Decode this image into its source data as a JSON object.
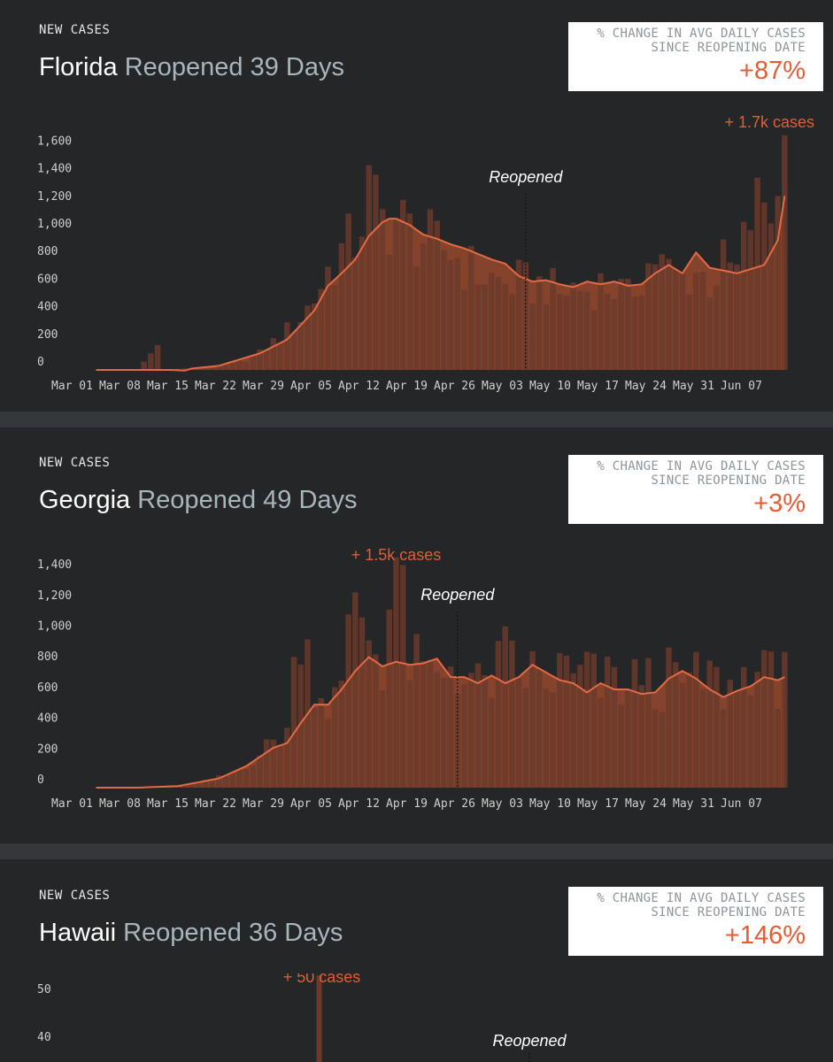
{
  "colors": {
    "background": "#252628",
    "separator": "#34373b",
    "bar": "#6b3a2b",
    "area": "#8a442c",
    "line": "#e36a44",
    "accent": "#e25d34",
    "muted": "#a7b5bd"
  },
  "panels": [
    {
      "eyebrow": "NEW CASES",
      "state": "Florida",
      "reopened": "Reopened 39 Days",
      "stat_line1": "% CHANGE IN AVG DAILY CASES",
      "stat_line2": "SINCE REOPENING DATE",
      "stat_value": "+87%",
      "peak_label": "+ 1.7k cases",
      "reopen_label": "Reopened"
    },
    {
      "eyebrow": "NEW CASES",
      "state": "Georgia",
      "reopened": "Reopened 49 Days",
      "stat_line1": "% CHANGE IN AVG DAILY CASES",
      "stat_line2": "SINCE REOPENING DATE",
      "stat_value": "+3%",
      "peak_label": "+ 1.5k cases",
      "reopen_label": "Reopened"
    },
    {
      "eyebrow": "NEW CASES",
      "state": "Hawaii",
      "reopened": "Reopened 36 Days",
      "stat_line1": "% CHANGE IN AVG DAILY CASES",
      "stat_line2": "SINCE REOPENING DATE",
      "stat_value": "+146%",
      "peak_label": "+ 50 cases",
      "reopen_label": "Reopened"
    }
  ],
  "chart_data": [
    {
      "type": "bar",
      "title": "Florida Reopened 39 Days",
      "series_names": [
        "Daily new cases",
        "7-day average"
      ],
      "x_start": "2020-03-01",
      "xticks": [
        "Mar 01",
        "Mar 08",
        "Mar 15",
        "Mar 22",
        "Mar 29",
        "Apr 05",
        "Apr 12",
        "Apr 19",
        "Apr 26",
        "May 03",
        "May 10",
        "May 17",
        "May 24",
        "May 31",
        "Jun 07"
      ],
      "yticks": [
        "0",
        "200",
        "400",
        "600",
        "800",
        "1,000",
        "1,200",
        "1,400",
        "1,600"
      ],
      "ylim": [
        0,
        1650
      ],
      "reopen_day": 63,
      "peak_day": 101,
      "anchors": [
        [
          0,
          0
        ],
        [
          4,
          0
        ],
        [
          5,
          5
        ],
        [
          6,
          0
        ],
        [
          9,
          180
        ],
        [
          10,
          0
        ],
        [
          13,
          12
        ],
        [
          16,
          8
        ],
        [
          20,
          40
        ],
        [
          24,
          120
        ],
        [
          28,
          280
        ],
        [
          30,
          380
        ],
        [
          32,
          520
        ],
        [
          34,
          720
        ],
        [
          36,
          850
        ],
        [
          38,
          950
        ],
        [
          40,
          1280
        ],
        [
          42,
          1080
        ],
        [
          44,
          1100
        ],
        [
          46,
          1000
        ],
        [
          48,
          950
        ],
        [
          50,
          880
        ],
        [
          52,
          870
        ],
        [
          54,
          760
        ],
        [
          56,
          700
        ],
        [
          58,
          660
        ],
        [
          60,
          620
        ],
        [
          62,
          640
        ],
        [
          64,
          600
        ],
        [
          66,
          620
        ],
        [
          68,
          540
        ],
        [
          70,
          600
        ],
        [
          72,
          580
        ],
        [
          74,
          620
        ],
        [
          76,
          600
        ],
        [
          78,
          520
        ],
        [
          80,
          700
        ],
        [
          82,
          820
        ],
        [
          84,
          700
        ],
        [
          86,
          660
        ],
        [
          88,
          720
        ],
        [
          90,
          640
        ],
        [
          92,
          760
        ],
        [
          94,
          700
        ],
        [
          96,
          1100
        ],
        [
          98,
          1240
        ],
        [
          100,
          1200
        ],
        [
          101,
          1700
        ]
      ],
      "avg_anchors": [
        [
          0,
          0
        ],
        [
          11,
          0
        ],
        [
          13,
          -5
        ],
        [
          14,
          10
        ],
        [
          18,
          30
        ],
        [
          24,
          120
        ],
        [
          28,
          220
        ],
        [
          32,
          430
        ],
        [
          34,
          610
        ],
        [
          36,
          700
        ],
        [
          38,
          800
        ],
        [
          40,
          970
        ],
        [
          42,
          1070
        ],
        [
          43,
          1095
        ],
        [
          44,
          1095
        ],
        [
          46,
          1050
        ],
        [
          48,
          980
        ],
        [
          50,
          950
        ],
        [
          52,
          910
        ],
        [
          54,
          880
        ],
        [
          56,
          840
        ],
        [
          58,
          800
        ],
        [
          60,
          770
        ],
        [
          62,
          680
        ],
        [
          64,
          640
        ],
        [
          66,
          650
        ],
        [
          68,
          620
        ],
        [
          70,
          600
        ],
        [
          72,
          640
        ],
        [
          74,
          620
        ],
        [
          76,
          640
        ],
        [
          78,
          610
        ],
        [
          80,
          620
        ],
        [
          82,
          700
        ],
        [
          84,
          760
        ],
        [
          86,
          700
        ],
        [
          88,
          850
        ],
        [
          90,
          740
        ],
        [
          92,
          720
        ],
        [
          94,
          700
        ],
        [
          96,
          730
        ],
        [
          98,
          760
        ],
        [
          100,
          940
        ],
        [
          101,
          1260
        ]
      ]
    },
    {
      "type": "bar",
      "title": "Georgia Reopened 49 Days",
      "series_names": [
        "Daily new cases",
        "7-day average"
      ],
      "x_start": "2020-03-01",
      "xticks": [
        "Mar 01",
        "Mar 08",
        "Mar 15",
        "Mar 22",
        "Mar 29",
        "Apr 05",
        "Apr 12",
        "Apr 19",
        "Apr 26",
        "May 03",
        "May 10",
        "May 17",
        "May 24",
        "May 31",
        "Jun 07"
      ],
      "yticks": [
        "0",
        "200",
        "400",
        "600",
        "800",
        "1,000",
        "1,200",
        "1,400"
      ],
      "ylim": [
        0,
        1450
      ],
      "reopen_day": 53,
      "peak_day": 44,
      "anchors": [
        [
          0,
          0
        ],
        [
          6,
          2
        ],
        [
          8,
          4
        ],
        [
          12,
          12
        ],
        [
          16,
          40
        ],
        [
          20,
          90
        ],
        [
          24,
          220
        ],
        [
          28,
          380
        ],
        [
          30,
          1100
        ],
        [
          32,
          700
        ],
        [
          34,
          540
        ],
        [
          36,
          620
        ],
        [
          38,
          1300
        ],
        [
          40,
          1000
        ],
        [
          42,
          820
        ],
        [
          44,
          1500
        ],
        [
          46,
          820
        ],
        [
          48,
          760
        ],
        [
          50,
          700
        ],
        [
          52,
          820
        ],
        [
          54,
          720
        ],
        [
          56,
          660
        ],
        [
          58,
          700
        ],
        [
          60,
          860
        ],
        [
          62,
          720
        ],
        [
          64,
          760
        ],
        [
          66,
          640
        ],
        [
          68,
          780
        ],
        [
          70,
          700
        ],
        [
          72,
          760
        ],
        [
          74,
          660
        ],
        [
          76,
          720
        ],
        [
          78,
          600
        ],
        [
          80,
          780
        ],
        [
          82,
          620
        ],
        [
          84,
          720
        ],
        [
          86,
          680
        ],
        [
          88,
          700
        ],
        [
          90,
          720
        ],
        [
          92,
          640
        ],
        [
          94,
          650
        ],
        [
          96,
          820
        ],
        [
          98,
          720
        ],
        [
          100,
          700
        ],
        [
          101,
          980
        ]
      ],
      "avg_anchors": [
        [
          0,
          0
        ],
        [
          6,
          0
        ],
        [
          12,
          10
        ],
        [
          18,
          60
        ],
        [
          22,
          140
        ],
        [
          26,
          260
        ],
        [
          28,
          290
        ],
        [
          30,
          420
        ],
        [
          32,
          540
        ],
        [
          34,
          540
        ],
        [
          36,
          640
        ],
        [
          38,
          760
        ],
        [
          40,
          850
        ],
        [
          42,
          790
        ],
        [
          44,
          820
        ],
        [
          46,
          800
        ],
        [
          48,
          810
        ],
        [
          50,
          840
        ],
        [
          52,
          720
        ],
        [
          54,
          720
        ],
        [
          56,
          680
        ],
        [
          58,
          730
        ],
        [
          60,
          680
        ],
        [
          62,
          720
        ],
        [
          64,
          800
        ],
        [
          66,
          750
        ],
        [
          68,
          700
        ],
        [
          70,
          680
        ],
        [
          72,
          620
        ],
        [
          74,
          680
        ],
        [
          76,
          640
        ],
        [
          78,
          640
        ],
        [
          80,
          610
        ],
        [
          82,
          620
        ],
        [
          84,
          710
        ],
        [
          86,
          760
        ],
        [
          88,
          710
        ],
        [
          90,
          640
        ],
        [
          92,
          590
        ],
        [
          94,
          630
        ],
        [
          96,
          660
        ],
        [
          98,
          720
        ],
        [
          100,
          700
        ],
        [
          101,
          720
        ]
      ]
    },
    {
      "type": "bar",
      "title": "Hawaii Reopened 36 Days",
      "series_names": [
        "Daily new cases"
      ],
      "yticks": [
        "40",
        "50"
      ],
      "peak_value": 50,
      "reopen_day": 66,
      "peak_day": 34
    }
  ]
}
